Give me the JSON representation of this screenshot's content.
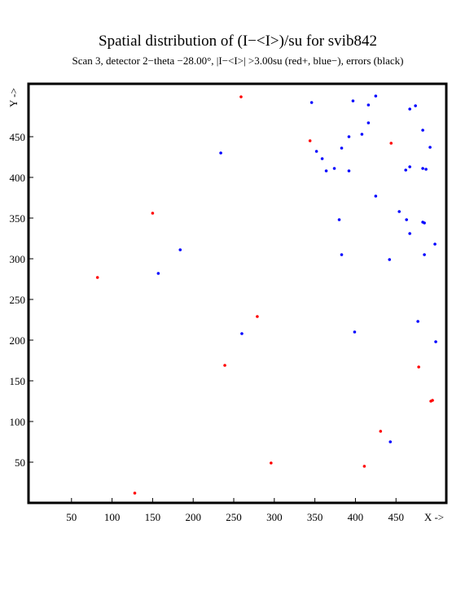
{
  "chart_data": {
    "type": "scatter",
    "title": "Spatial distribution of (I−<I>)/su for svib842",
    "subtitle": "Scan  3, detector 2−theta −28.00°, |I−<I>| >3.00su (red+, blue−), errors (black)",
    "x_label": "X ->",
    "y_label": "Y ->",
    "xlim": [
      -3,
      512
    ],
    "ylim": [
      0,
      515
    ],
    "xticks": [
      50,
      100,
      150,
      200,
      250,
      300,
      350,
      400,
      450
    ],
    "yticks": [
      50,
      100,
      150,
      200,
      250,
      300,
      350,
      400,
      450
    ],
    "series": [
      {
        "color": "#ff0000",
        "x": [
          259,
          344,
          444,
          150,
          82,
          279,
          239,
          478,
          493,
          495,
          431,
          296,
          411,
          128
        ],
        "values": [
          499,
          445,
          442,
          356,
          277,
          229,
          169,
          167,
          125,
          126,
          88,
          49,
          45,
          12
        ]
      },
      {
        "color": "#0000ff",
        "x": [
          425,
          346,
          397,
          416,
          467,
          474,
          416,
          483,
          234,
          352,
          359,
          492,
          408,
          392,
          383,
          374,
          364,
          392,
          462,
          467,
          483,
          487,
          425,
          454,
          380,
          463,
          483,
          485,
          467,
          498,
          184,
          383,
          485,
          442,
          157,
          477,
          399,
          260,
          499,
          443
        ],
        "values": [
          500,
          492,
          494,
          489,
          484,
          488,
          467,
          458,
          430,
          432,
          423,
          437,
          453,
          450,
          436,
          411,
          408,
          408,
          409,
          413,
          411,
          410,
          377,
          358,
          348,
          348,
          345,
          344,
          331,
          318,
          311,
          305,
          305,
          299,
          282,
          223,
          210,
          208,
          198,
          75
        ]
      }
    ]
  }
}
